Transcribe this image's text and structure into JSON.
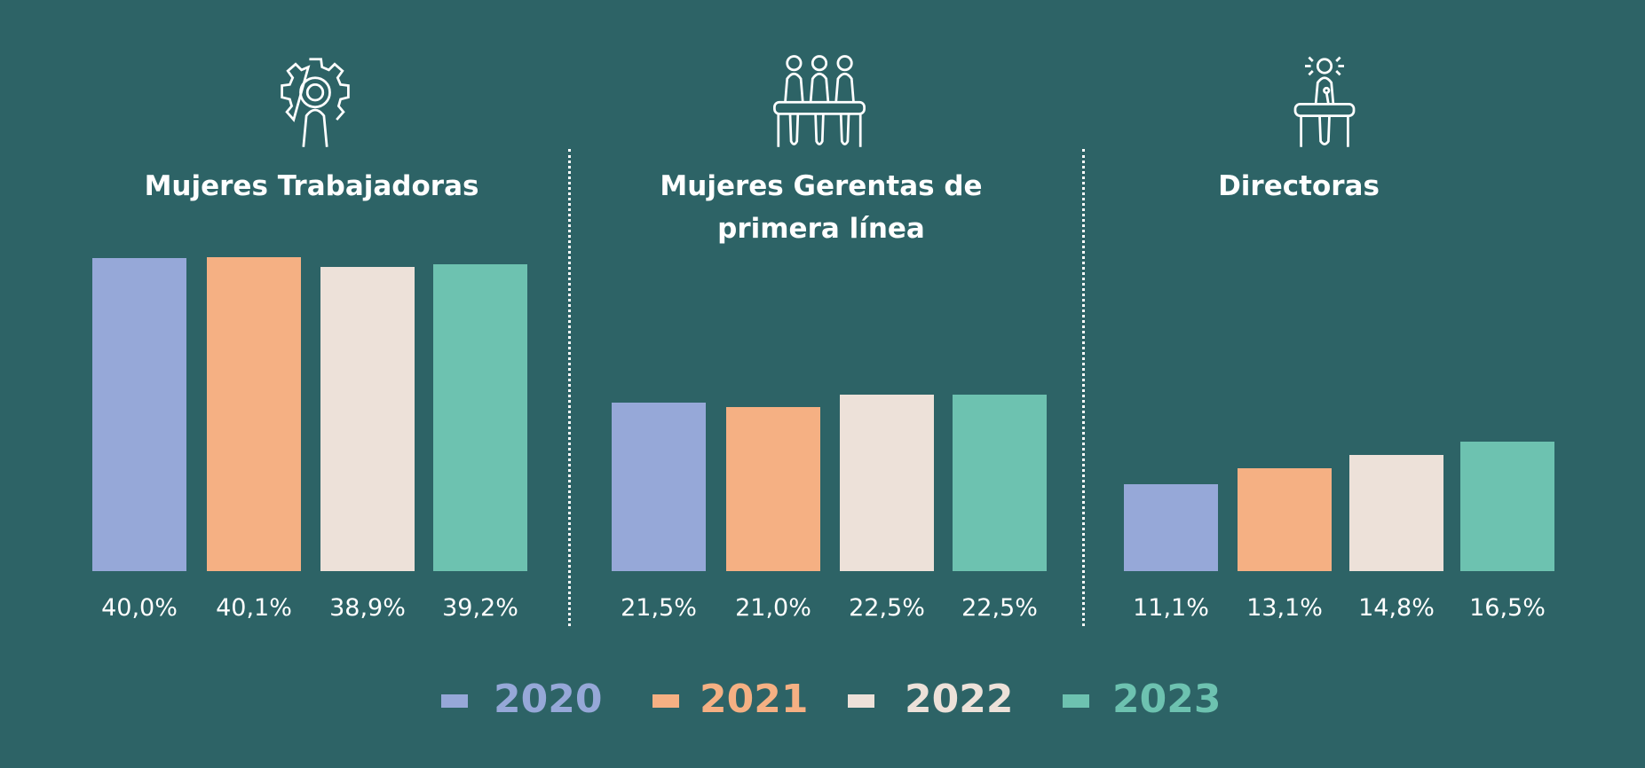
{
  "chart_data": {
    "type": "bar",
    "ylim": [
      0,
      40
    ],
    "grid": false,
    "legend_placement": "bottom",
    "groups": [
      {
        "title_lines": [
          "Mujeres Trabajadoras"
        ],
        "icon": "gear-person-icon",
        "values": [
          40.0,
          40.1,
          38.9,
          39.2
        ],
        "labels": [
          "40,0%",
          "40,1%",
          "38,9%",
          "39,2%"
        ]
      },
      {
        "title_lines": [
          "Mujeres Gerentas de",
          "primera línea"
        ],
        "icon": "people-at-table-icon",
        "values": [
          21.5,
          21.0,
          22.5,
          22.5
        ],
        "labels": [
          "21,5%",
          "21,0%",
          "22,5%",
          "22,5%"
        ]
      },
      {
        "title_lines": [
          "Directoras"
        ],
        "icon": "speaker-at-podium-icon",
        "values": [
          11.1,
          13.1,
          14.8,
          16.5
        ],
        "labels": [
          "11,1%",
          "13,1%",
          "14,8%",
          "16,5%"
        ]
      }
    ],
    "series": [
      {
        "name": "2020",
        "color": "#96a8d8"
      },
      {
        "name": "2021",
        "color": "#f5b083"
      },
      {
        "name": "2022",
        "color": "#ede1d9"
      },
      {
        "name": "2023",
        "color": "#6dc2b0"
      }
    ]
  }
}
